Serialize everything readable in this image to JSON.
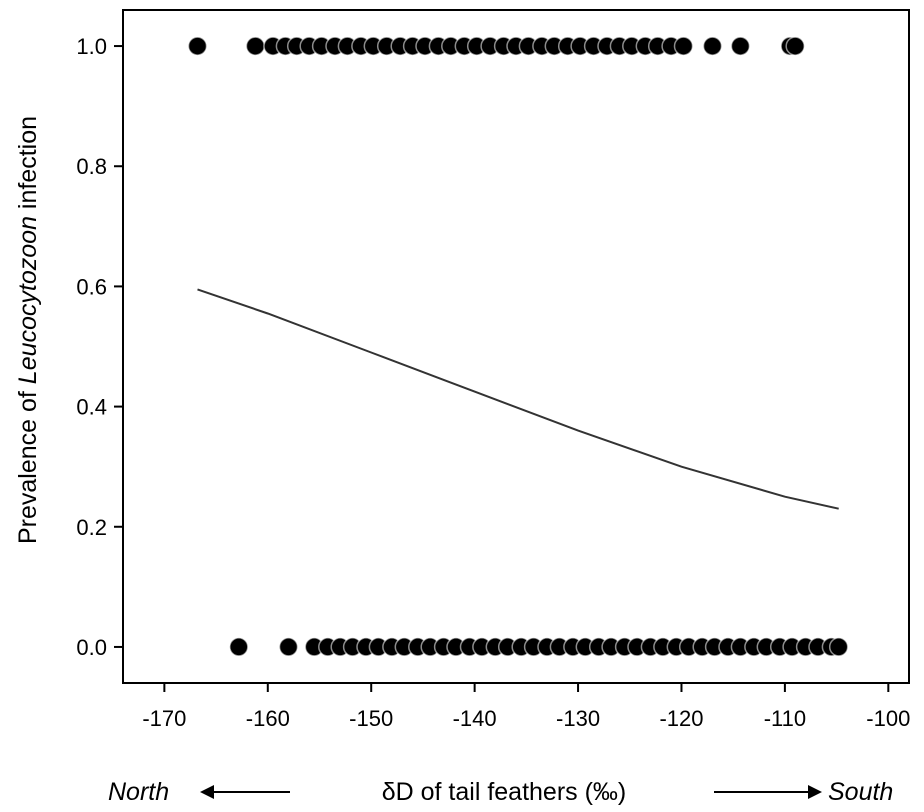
{
  "chart_data": {
    "type": "scatter",
    "xlabel": "δD of tail feathers (‰)",
    "ylabel_parts": {
      "pre": "Prevalence of ",
      "italic": "Leucocytozoon",
      "post": " infection"
    },
    "direction_left": "North",
    "direction_right": "South",
    "xlim": [
      -174,
      -98
    ],
    "ylim": [
      -0.06,
      1.06
    ],
    "x_ticks": [
      -170,
      -160,
      -150,
      -140,
      -130,
      -120,
      -110,
      -100
    ],
    "x_tick_labels": [
      "-170",
      "-160",
      "-150",
      "-140",
      "-130",
      "-120",
      "-110",
      "-100"
    ],
    "y_ticks": [
      0.0,
      0.2,
      0.4,
      0.6,
      0.8,
      1.0
    ],
    "y_tick_labels": [
      "0.0",
      "0.2",
      "0.4",
      "0.6",
      "0.8",
      "1.0"
    ],
    "series": [
      {
        "y": 1,
        "x": [
          -166.8,
          -161.2,
          -159.5,
          -158.3,
          -157.2,
          -156.0,
          -154.8,
          -153.5,
          -152.3,
          -151.0,
          -149.8,
          -148.5,
          -147.2,
          -146.0,
          -144.8,
          -143.5,
          -142.3,
          -141.0,
          -139.8,
          -138.5,
          -137.2,
          -136.0,
          -134.8,
          -133.5,
          -132.3,
          -131.0,
          -129.8,
          -128.5,
          -127.2,
          -126.0,
          -124.8,
          -123.5,
          -122.3,
          -121.0,
          -119.8,
          -117.0,
          -114.3,
          -109.5,
          -109.0
        ]
      },
      {
        "y": 0,
        "x": [
          -162.8,
          -158.0,
          -155.5,
          -154.2,
          -153.0,
          -151.8,
          -150.5,
          -149.3,
          -148.0,
          -146.8,
          -145.5,
          -144.3,
          -143.0,
          -141.8,
          -140.5,
          -139.3,
          -138.0,
          -136.8,
          -135.5,
          -134.3,
          -133.0,
          -131.8,
          -130.5,
          -129.3,
          -128.0,
          -126.8,
          -125.5,
          -124.3,
          -123.0,
          -121.8,
          -120.5,
          -119.3,
          -118.0,
          -116.8,
          -115.5,
          -114.3,
          -113.0,
          -111.8,
          -110.5,
          -109.3,
          -108.0,
          -106.8,
          -105.5,
          -104.8
        ]
      }
    ],
    "fit_curve": {
      "x": [
        -166.8,
        -160,
        -150,
        -140,
        -130,
        -120,
        -110,
        -104.8
      ],
      "y": [
        0.595,
        0.555,
        0.49,
        0.425,
        0.36,
        0.3,
        0.25,
        0.23
      ]
    }
  }
}
